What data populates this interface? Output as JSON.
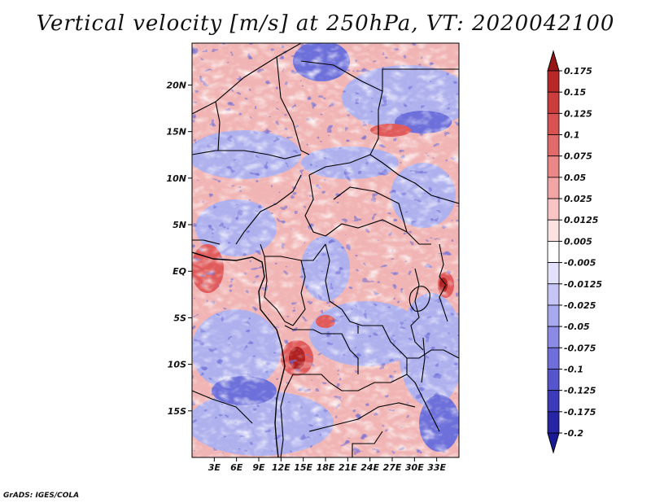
{
  "title": "Vertical velocity [m/s] at 250hPa, VT: 2020042100",
  "credit": "GrADS: IGES/COLA",
  "map": {
    "lon_range": [
      0,
      36
    ],
    "lat_range": [
      -20,
      24.5
    ],
    "lat_ticks": [
      {
        "lat": 20,
        "label": "20N"
      },
      {
        "lat": 15,
        "label": "15N"
      },
      {
        "lat": 10,
        "label": "10N"
      },
      {
        "lat": 5,
        "label": "5N"
      },
      {
        "lat": 0,
        "label": "EQ"
      },
      {
        "lat": -5,
        "label": "5S"
      },
      {
        "lat": -10,
        "label": "10S"
      },
      {
        "lat": -15,
        "label": "15S"
      }
    ],
    "lon_ticks": [
      {
        "lon": 3,
        "label": "3E"
      },
      {
        "lon": 6,
        "label": "6E"
      },
      {
        "lon": 9,
        "label": "9E"
      },
      {
        "lon": 12,
        "label": "12E"
      },
      {
        "lon": 15,
        "label": "15E"
      },
      {
        "lon": 18,
        "label": "18E"
      },
      {
        "lon": 21,
        "label": "21E"
      },
      {
        "lon": 24,
        "label": "24E"
      },
      {
        "lon": 27,
        "label": "27E"
      },
      {
        "lon": 30,
        "label": "30E"
      },
      {
        "lon": 33,
        "label": "33E"
      }
    ]
  },
  "colorbar": {
    "levels": [
      {
        "label": "0.175",
        "color": "#a51b1b"
      },
      {
        "label": "0.15",
        "color": "#b92828"
      },
      {
        "label": "0.125",
        "color": "#cb3c3c"
      },
      {
        "label": "0.1",
        "color": "#d85252"
      },
      {
        "label": "0.075",
        "color": "#e36a6a"
      },
      {
        "label": "0.05",
        "color": "#ec8787"
      },
      {
        "label": "0.025",
        "color": "#f3a5a5"
      },
      {
        "label": "0.0125",
        "color": "#f8c4c4"
      },
      {
        "label": "0.005",
        "color": "#fce2e2"
      },
      {
        "label": "-0.005",
        "color": "#ffffff"
      },
      {
        "label": "-0.0125",
        "color": "#e2e2fc"
      },
      {
        "label": "-0.025",
        "color": "#c6c6f6"
      },
      {
        "label": "-0.05",
        "color": "#a8a8ef"
      },
      {
        "label": "-0.075",
        "color": "#8b8be6"
      },
      {
        "label": "-0.1",
        "color": "#6f6fdb"
      },
      {
        "label": "-0.125",
        "color": "#5555cd"
      },
      {
        "label": "-0.175",
        "color": "#3b3bbb"
      },
      {
        "label": "-0.2",
        "color": "#2525a5"
      }
    ],
    "top_cap_color": "#971515",
    "bottom_cap_color": "#1a1a98"
  }
}
